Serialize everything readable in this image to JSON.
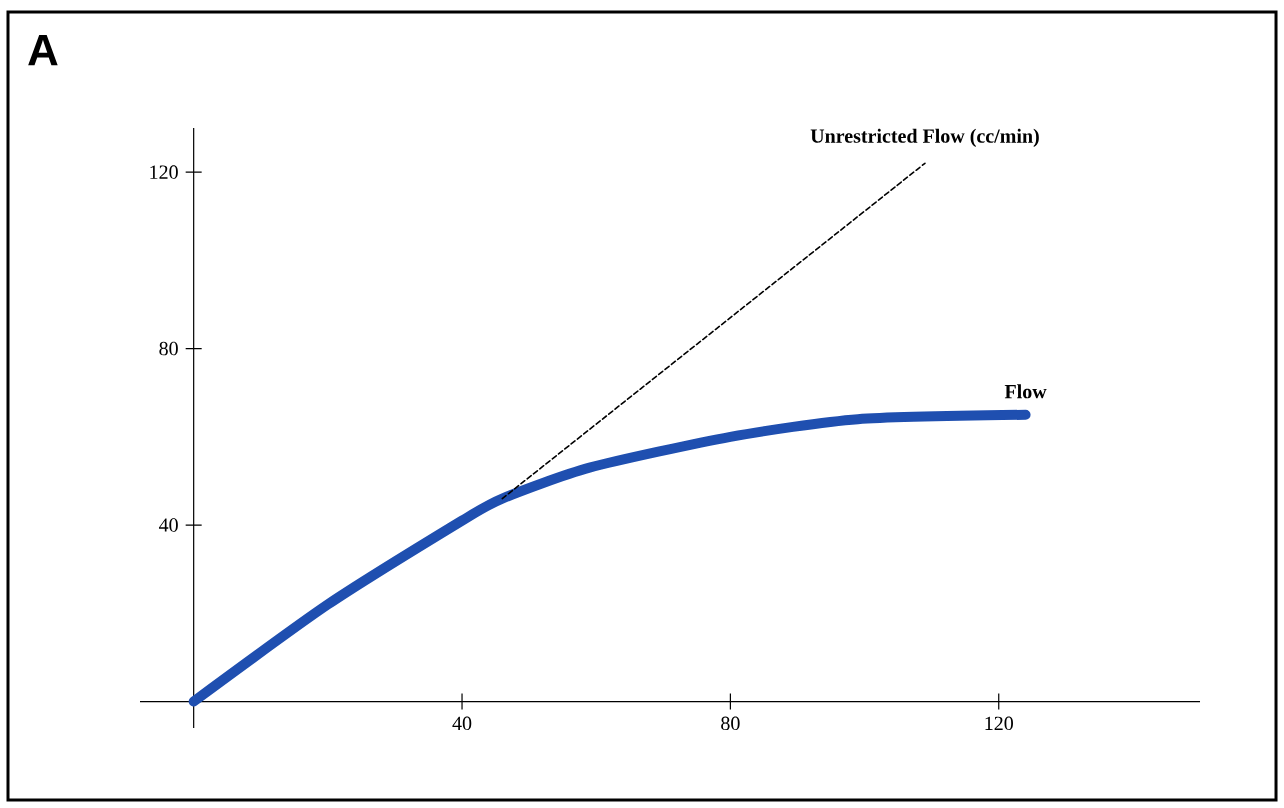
{
  "chart_data": {
    "type": "line",
    "title": "A",
    "xlim": [
      -8,
      150
    ],
    "ylim": [
      -6,
      130
    ],
    "xticks": [
      40,
      80,
      120
    ],
    "yticks": [
      40,
      80,
      120
    ],
    "marker": "none",
    "series": [
      {
        "name": "Unrestricted Flow (cc/min)",
        "color": "#000000",
        "line_style": "dashed",
        "x": [
          46,
          109
        ],
        "values": [
          46,
          122
        ]
      },
      {
        "name": "Flow",
        "color": "#1f4fb0",
        "line_style": "solid",
        "x": [
          0,
          20,
          40,
          46,
          59,
          80,
          99,
          124
        ],
        "values": [
          0,
          22,
          41,
          46,
          53,
          60,
          64,
          65
        ]
      }
    ]
  }
}
